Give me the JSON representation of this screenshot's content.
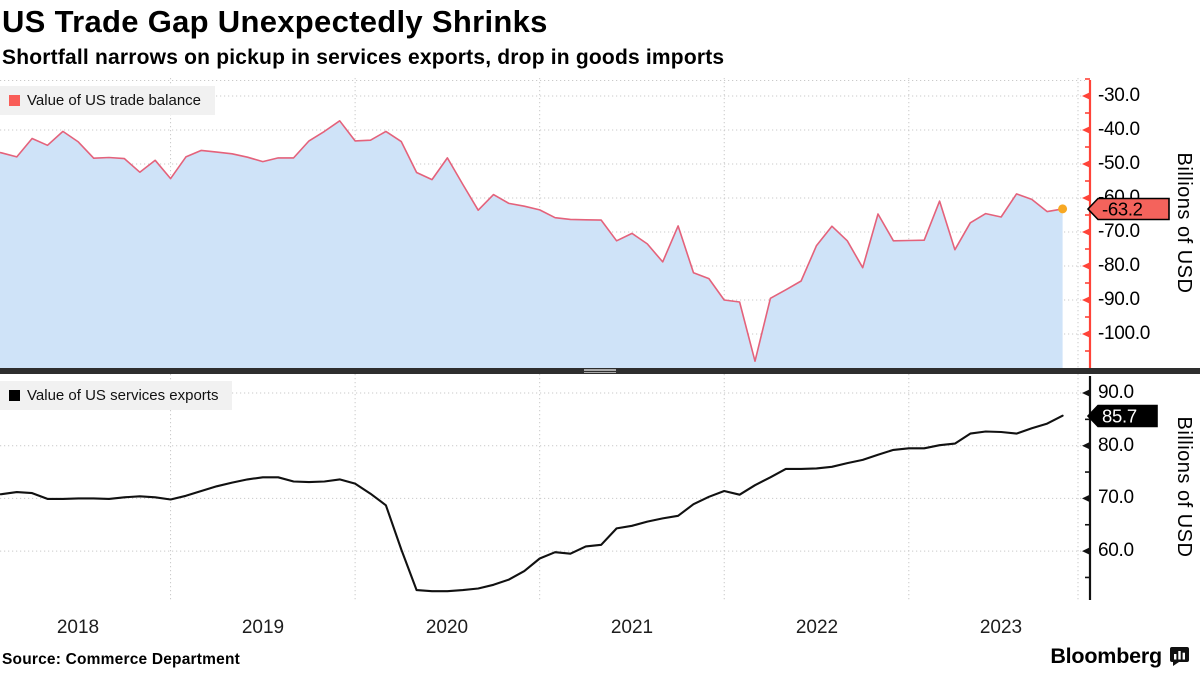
{
  "header": {
    "title": "US Trade Gap Unexpectedly Shrinks",
    "subtitle": "Shortfall narrows on pickup in services exports, drop in goods imports"
  },
  "footer": {
    "source": "Source: Commerce Department",
    "brand": "Bloomberg",
    "brand_icon": "bloomberg-chart-bubble-icon"
  },
  "x_axis": {
    "tick_labels": [
      "2018",
      "2019",
      "2020",
      "2021",
      "2022",
      "2023"
    ],
    "frequency": "monthly",
    "start": "2018-01",
    "end": "2023-11"
  },
  "chart_data": [
    {
      "type": "area",
      "panel": "top",
      "legend": "Value of US trade balance",
      "ylabel": "Billions of USD",
      "y_ticks": [
        -30,
        -40,
        -50,
        -60,
        -70,
        -80,
        -90,
        -100
      ],
      "ylim": [
        -110,
        -26.5
      ],
      "last_value_label": "-63.2",
      "last_point_marker": "orange-dot",
      "values": [
        -46.0,
        -46.7,
        -47.9,
        -42.5,
        -44.5,
        -40.4,
        -43.5,
        -48.3,
        -48.1,
        -48.4,
        -52.4,
        -48.9,
        -54.3,
        -47.9,
        -46.0,
        -46.5,
        -47.0,
        -48.0,
        -49.3,
        -48.2,
        -48.2,
        -43.2,
        -40.4,
        -37.3,
        -43.2,
        -43.0,
        -40.4,
        -43.4,
        -52.5,
        -54.6,
        -48.2,
        -56.0,
        -63.6,
        -59.0,
        -61.6,
        -62.4,
        -63.5,
        -65.8,
        -66.3,
        -66.4,
        -66.5,
        -72.6,
        -70.4,
        -73.5,
        -78.8,
        -68.2,
        -82.0,
        -83.7,
        -90.0,
        -90.6,
        -108.0,
        -89.5,
        -87.0,
        -84.4,
        -74.0,
        -68.3,
        -72.6,
        -80.5,
        -64.7,
        -72.6,
        -72.5,
        -72.4,
        -60.9,
        -75.2,
        -67.3,
        -64.6,
        -65.6,
        -58.8,
        -60.4,
        -64.0,
        -63.2
      ]
    },
    {
      "type": "line",
      "panel": "bottom",
      "legend": "Value of US services exports",
      "ylabel": "Billions of USD",
      "y_ticks": [
        90,
        80,
        70,
        60
      ],
      "ylim": [
        50.7,
        93.2
      ],
      "last_value_label": "85.7",
      "values": [
        70.7,
        70.8,
        71.2,
        71.0,
        69.9,
        69.9,
        70.0,
        70.0,
        69.9,
        70.2,
        70.4,
        70.2,
        69.8,
        70.5,
        71.4,
        72.3,
        73.0,
        73.6,
        74.0,
        74.0,
        73.2,
        73.1,
        73.2,
        73.6,
        72.8,
        70.9,
        68.7,
        60.3,
        52.6,
        52.4,
        52.4,
        52.6,
        52.9,
        53.6,
        54.6,
        56.2,
        58.6,
        59.8,
        59.5,
        60.9,
        61.2,
        64.3,
        64.8,
        65.6,
        66.2,
        66.7,
        68.9,
        70.3,
        71.4,
        70.7,
        72.5,
        74.0,
        75.6,
        75.6,
        75.7,
        76.0,
        76.7,
        77.3,
        78.3,
        79.2,
        79.5,
        79.5,
        80.1,
        80.4,
        82.3,
        82.7,
        82.6,
        82.3,
        83.3,
        84.2,
        85.7
      ]
    }
  ],
  "colors": {
    "trade_line": "#e4627b",
    "trade_fill": "#cfe3f8",
    "trade_axis": "#ff4338",
    "trade_badge_fill": "#f4635c",
    "trade_badge_text": "#000000",
    "trade_legend_swatch": "#f95d58",
    "services_line": "#111111",
    "services_axis": "#111111",
    "services_badge_fill": "#000000",
    "services_badge_text": "#ffffff",
    "services_legend_swatch": "#000000",
    "marker_orange": "#f7a823",
    "grid": "#c9c9c9",
    "legend_bg": "#f1f1f1",
    "divider": "#2e2e2e",
    "divider_handle": "#a8a8a8"
  }
}
